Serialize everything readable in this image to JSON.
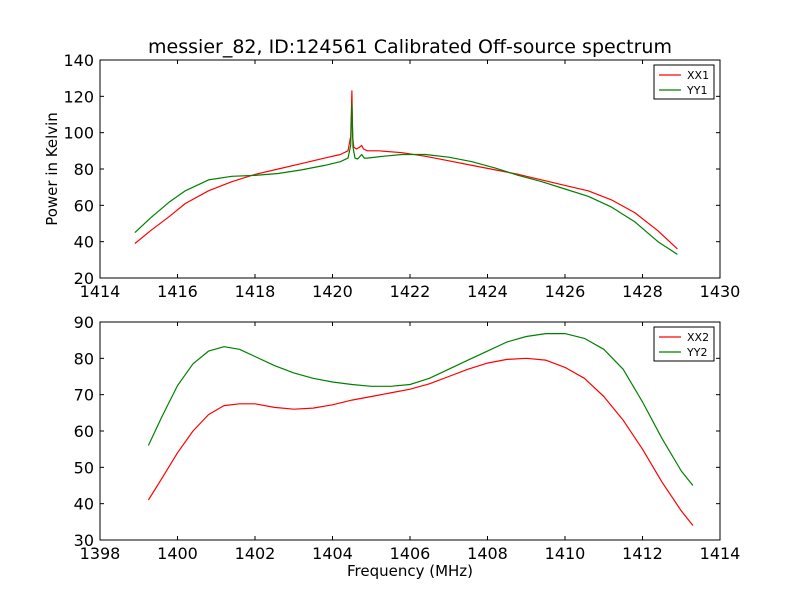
{
  "chart_data": [
    {
      "type": "line",
      "title": "messier_82, ID:124561 Calibrated Off-source spectrum",
      "xlabel": "",
      "ylabel": "Power in Kelvin",
      "xlim": [
        1414,
        1430
      ],
      "ylim": [
        20,
        140
      ],
      "xticks": [
        1414,
        1416,
        1418,
        1420,
        1422,
        1424,
        1426,
        1428,
        1430
      ],
      "yticks": [
        20,
        40,
        60,
        80,
        100,
        120,
        140
      ],
      "legend_position": "top-right",
      "series": [
        {
          "name": "XX1",
          "color": "#ff0000",
          "x": [
            1414.9,
            1415.3,
            1415.8,
            1416.2,
            1416.8,
            1417.4,
            1418.0,
            1418.6,
            1419.2,
            1419.8,
            1420.2,
            1420.4,
            1420.47,
            1420.5,
            1420.52,
            1420.55,
            1420.62,
            1420.7,
            1420.75,
            1420.8,
            1420.9,
            1421.2,
            1421.8,
            1422.4,
            1423.0,
            1423.6,
            1424.2,
            1424.8,
            1425.4,
            1426.0,
            1426.6,
            1427.2,
            1427.8,
            1428.4,
            1428.9
          ],
          "y": [
            39,
            46,
            54,
            61,
            68,
            73,
            77,
            80,
            83,
            86,
            88,
            90,
            98,
            123,
            98,
            92,
            91,
            92,
            93,
            91,
            90,
            90,
            89,
            87,
            84.5,
            82,
            79.5,
            77,
            74,
            71,
            68,
            63,
            56,
            46,
            36
          ]
        },
        {
          "name": "YY1",
          "color": "#008000",
          "x": [
            1414.9,
            1415.3,
            1415.8,
            1416.2,
            1416.8,
            1417.4,
            1418.0,
            1418.6,
            1419.2,
            1419.8,
            1420.2,
            1420.4,
            1420.47,
            1420.5,
            1420.53,
            1420.58,
            1420.65,
            1420.75,
            1420.82,
            1420.9,
            1421.3,
            1421.8,
            1422.4,
            1423.0,
            1423.6,
            1424.2,
            1424.8,
            1425.4,
            1426.0,
            1426.6,
            1427.2,
            1427.8,
            1428.4,
            1428.9
          ],
          "y": [
            45,
            53,
            62,
            68,
            74,
            76,
            76.5,
            77.5,
            79.5,
            82,
            84,
            86,
            93,
            116,
            92,
            86,
            85.5,
            88,
            86,
            86,
            87,
            88,
            88,
            86.5,
            84,
            80.5,
            76.5,
            73,
            69,
            65,
            59,
            51,
            40,
            33
          ]
        }
      ]
    },
    {
      "type": "line",
      "title": "",
      "xlabel": "Frequency (MHz)",
      "ylabel": "",
      "xlim": [
        1398,
        1414
      ],
      "ylim": [
        30,
        90
      ],
      "xticks": [
        1398,
        1400,
        1402,
        1404,
        1406,
        1408,
        1410,
        1412,
        1414
      ],
      "yticks": [
        30,
        40,
        50,
        60,
        70,
        80,
        90
      ],
      "legend_position": "top-right",
      "series": [
        {
          "name": "XX2",
          "color": "#ff0000",
          "x": [
            1399.25,
            1399.6,
            1400.0,
            1400.4,
            1400.8,
            1401.2,
            1401.6,
            1402.0,
            1402.5,
            1403.0,
            1403.5,
            1404.0,
            1404.5,
            1405.0,
            1405.5,
            1406.0,
            1406.5,
            1407.0,
            1407.5,
            1408.0,
            1408.5,
            1409.0,
            1409.5,
            1410.0,
            1410.5,
            1411.0,
            1411.5,
            1412.0,
            1412.5,
            1413.0,
            1413.3
          ],
          "y": [
            41,
            47,
            54,
            60,
            64.5,
            67,
            67.5,
            67.5,
            66.5,
            66,
            66.3,
            67.2,
            68.5,
            69.5,
            70.5,
            71.5,
            73,
            75,
            77,
            78.7,
            79.7,
            80,
            79.5,
            77.5,
            74.5,
            69.5,
            63,
            55,
            46,
            38,
            34
          ]
        },
        {
          "name": "YY2",
          "color": "#008000",
          "x": [
            1399.25,
            1399.6,
            1400.0,
            1400.4,
            1400.8,
            1401.2,
            1401.6,
            1402.0,
            1402.5,
            1403.0,
            1403.5,
            1404.0,
            1404.5,
            1405.0,
            1405.5,
            1406.0,
            1406.5,
            1407.0,
            1407.5,
            1408.0,
            1408.5,
            1409.0,
            1409.5,
            1410.0,
            1410.5,
            1411.0,
            1411.5,
            1412.0,
            1412.5,
            1413.0,
            1413.3
          ],
          "y": [
            56,
            64,
            72.5,
            78.5,
            82,
            83.2,
            82.5,
            80.5,
            78,
            76,
            74.5,
            73.5,
            72.8,
            72.3,
            72.3,
            72.8,
            74.5,
            77,
            79.5,
            82,
            84.5,
            86,
            86.8,
            86.8,
            85.5,
            82.5,
            77,
            68,
            58,
            49,
            45
          ]
        }
      ]
    }
  ]
}
